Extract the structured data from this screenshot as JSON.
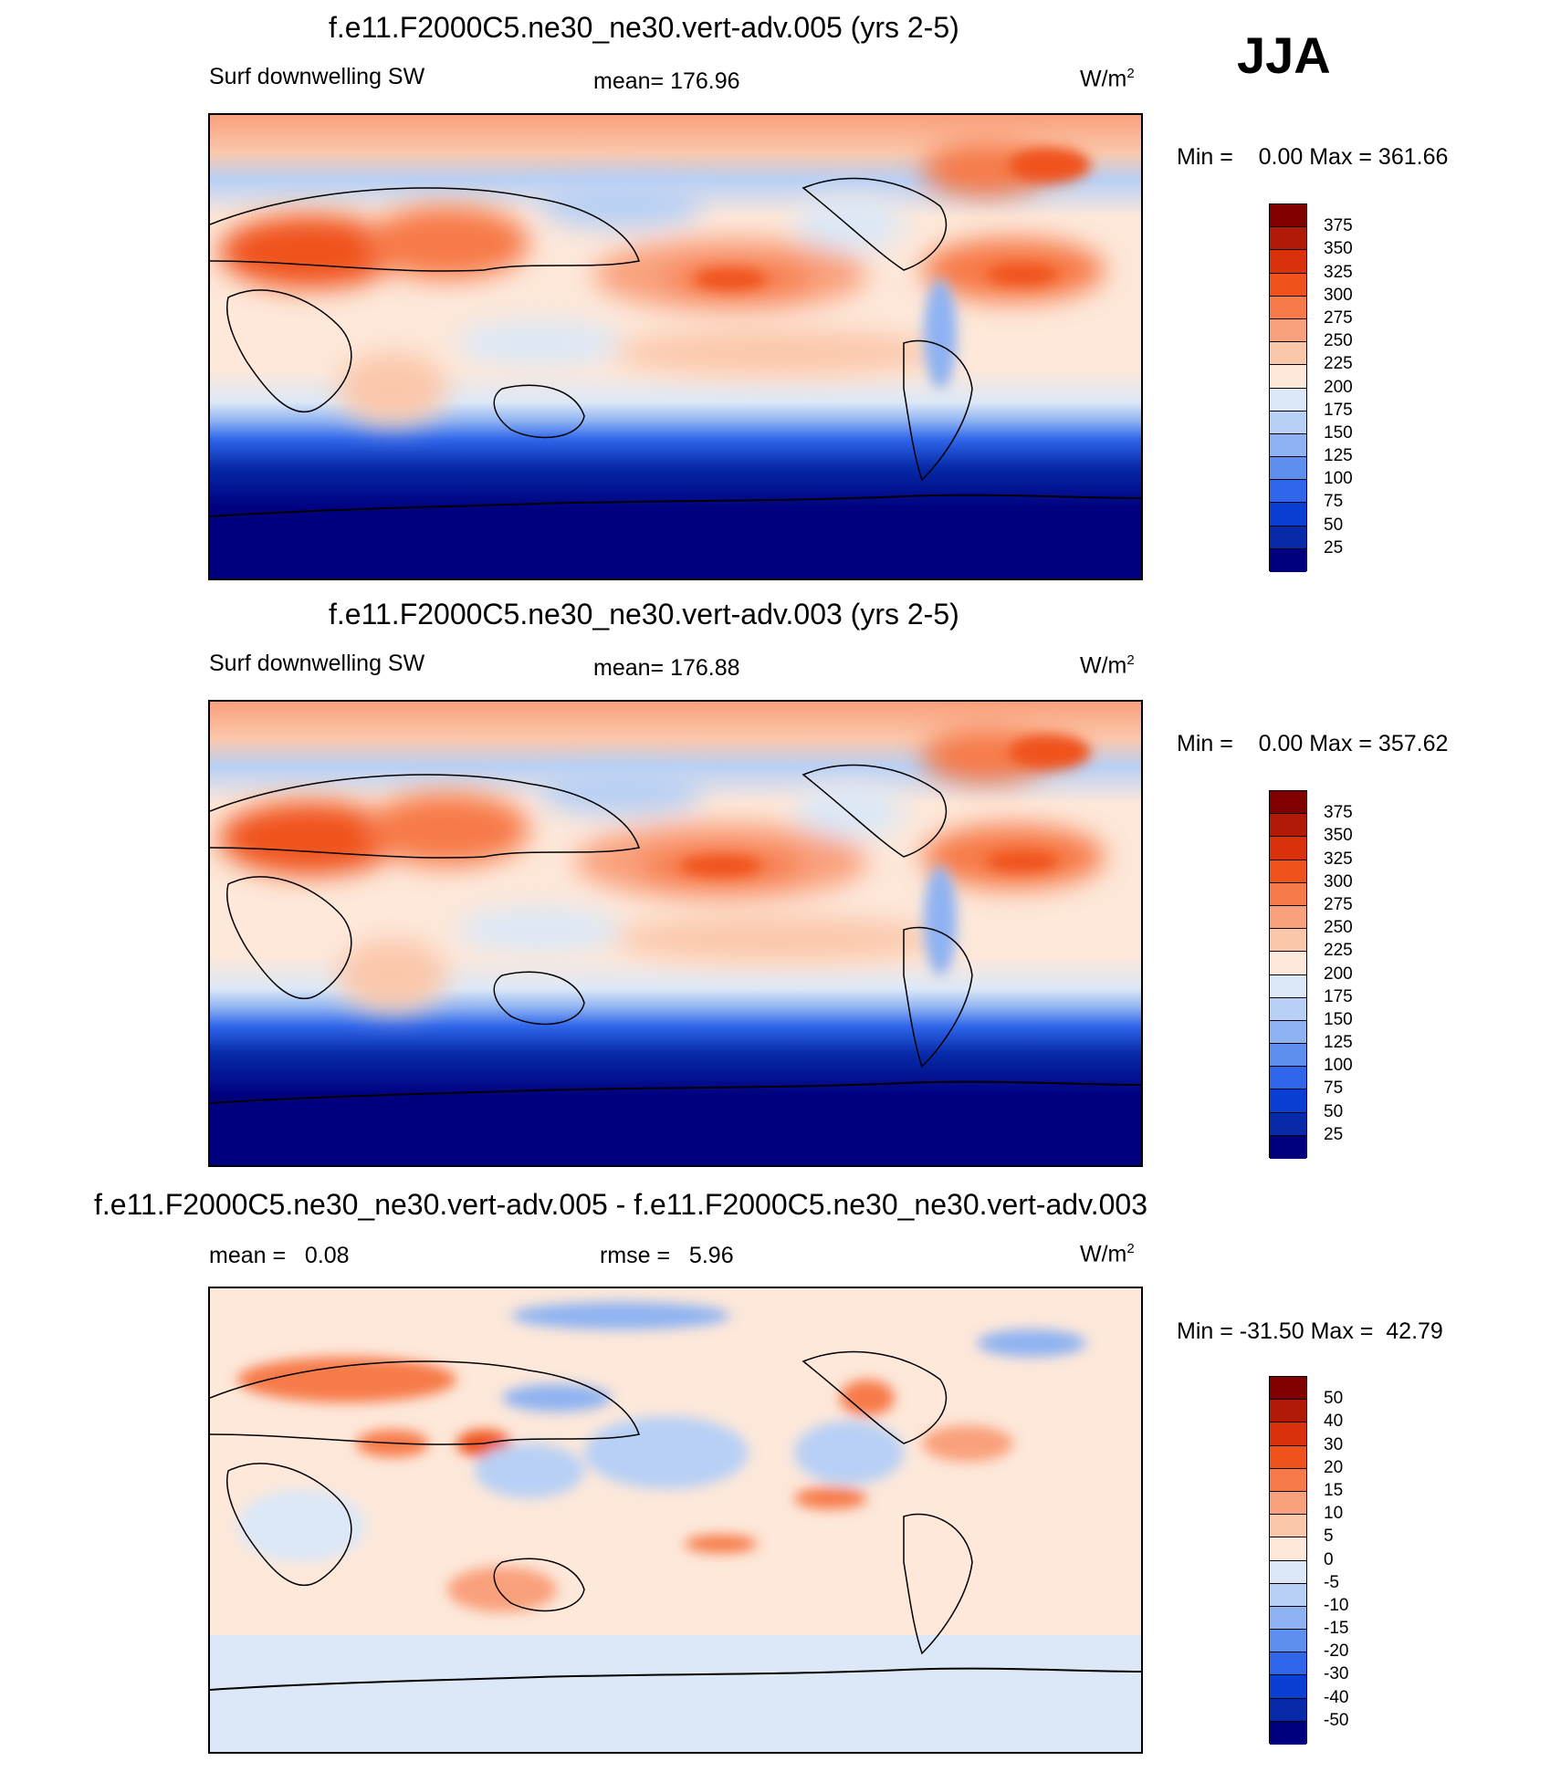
{
  "season": "JJA",
  "panels": [
    {
      "title": "f.e11.F2000C5.ne30_ne30.vert-adv.005 (yrs 2-5)",
      "left_text": "Surf downwelling SW",
      "center_text": "mean= 176.96",
      "units": "W/m",
      "units_sup": "2",
      "minmax": "Min =    0.00 Max = 361.66",
      "colorbar": {
        "labels": [
          "375",
          "350",
          "325",
          "300",
          "275",
          "250",
          "225",
          "200",
          "175",
          "150",
          "125",
          "100",
          "75",
          "50",
          "25"
        ],
        "colors": [
          "#800000",
          "#b01a06",
          "#d8310c",
          "#f0521d",
          "#f77a4a",
          "#f9a07c",
          "#fbc7ab",
          "#fde8da",
          "#dce8f7",
          "#b8d0f5",
          "#8eb2f2",
          "#5e8eee",
          "#2f66ea",
          "#0a3fd4",
          "#062aa8",
          "#00007f"
        ]
      }
    },
    {
      "title": "f.e11.F2000C5.ne30_ne30.vert-adv.003 (yrs 2-5)",
      "left_text": "Surf downwelling SW",
      "center_text": "mean= 176.88",
      "units": "W/m",
      "units_sup": "2",
      "minmax": "Min =    0.00 Max = 357.62",
      "colorbar": {
        "labels": [
          "375",
          "350",
          "325",
          "300",
          "275",
          "250",
          "225",
          "200",
          "175",
          "150",
          "125",
          "100",
          "75",
          "50",
          "25"
        ],
        "colors": [
          "#800000",
          "#b01a06",
          "#d8310c",
          "#f0521d",
          "#f77a4a",
          "#f9a07c",
          "#fbc7ab",
          "#fde8da",
          "#dce8f7",
          "#b8d0f5",
          "#8eb2f2",
          "#5e8eee",
          "#2f66ea",
          "#0a3fd4",
          "#062aa8",
          "#00007f"
        ]
      }
    },
    {
      "title": "f.e11.F2000C5.ne30_ne30.vert-adv.005 - f.e11.F2000C5.ne30_ne30.vert-adv.003",
      "left_text": "mean =   0.08",
      "center_text": "rmse =   5.96",
      "units": "W/m",
      "units_sup": "2",
      "minmax": "Min = -31.50 Max =  42.79",
      "colorbar": {
        "labels": [
          "50",
          "40",
          "30",
          "20",
          "15",
          "10",
          "5",
          "0",
          "-5",
          "-10",
          "-15",
          "-20",
          "-30",
          "-40",
          "-50"
        ],
        "colors": [
          "#800000",
          "#b01a06",
          "#d8310c",
          "#f0521d",
          "#f77a4a",
          "#f9a07c",
          "#fbc7ab",
          "#fde8da",
          "#dce8f7",
          "#b8d0f5",
          "#8eb2f2",
          "#5e8eee",
          "#2f66ea",
          "#0a3fd4",
          "#062aa8",
          "#00007f"
        ]
      }
    }
  ],
  "chart_data": [
    {
      "type": "heatmap",
      "title": "f.e11.F2000C5.ne30_ne30.vert-adv.005 (yrs 2-5)",
      "variable": "Surf downwelling SW",
      "units": "W/m2",
      "mean": 176.96,
      "min": 0.0,
      "max": 361.66,
      "contour_levels": [
        25,
        50,
        75,
        100,
        125,
        150,
        175,
        200,
        225,
        250,
        275,
        300,
        325,
        350,
        375
      ]
    },
    {
      "type": "heatmap",
      "title": "f.e11.F2000C5.ne30_ne30.vert-adv.003 (yrs 2-5)",
      "variable": "Surf downwelling SW",
      "units": "W/m2",
      "mean": 176.88,
      "min": 0.0,
      "max": 357.62,
      "contour_levels": [
        25,
        50,
        75,
        100,
        125,
        150,
        175,
        200,
        225,
        250,
        275,
        300,
        325,
        350,
        375
      ]
    },
    {
      "type": "heatmap",
      "title": "f.e11.F2000C5.ne30_ne30.vert-adv.005 - f.e11.F2000C5.ne30_ne30.vert-adv.003",
      "units": "W/m2",
      "mean": 0.08,
      "rmse": 5.96,
      "min": -31.5,
      "max": 42.79,
      "contour_levels": [
        -50,
        -40,
        -30,
        -20,
        -15,
        -10,
        -5,
        0,
        5,
        10,
        15,
        20,
        30,
        40,
        50
      ]
    }
  ]
}
